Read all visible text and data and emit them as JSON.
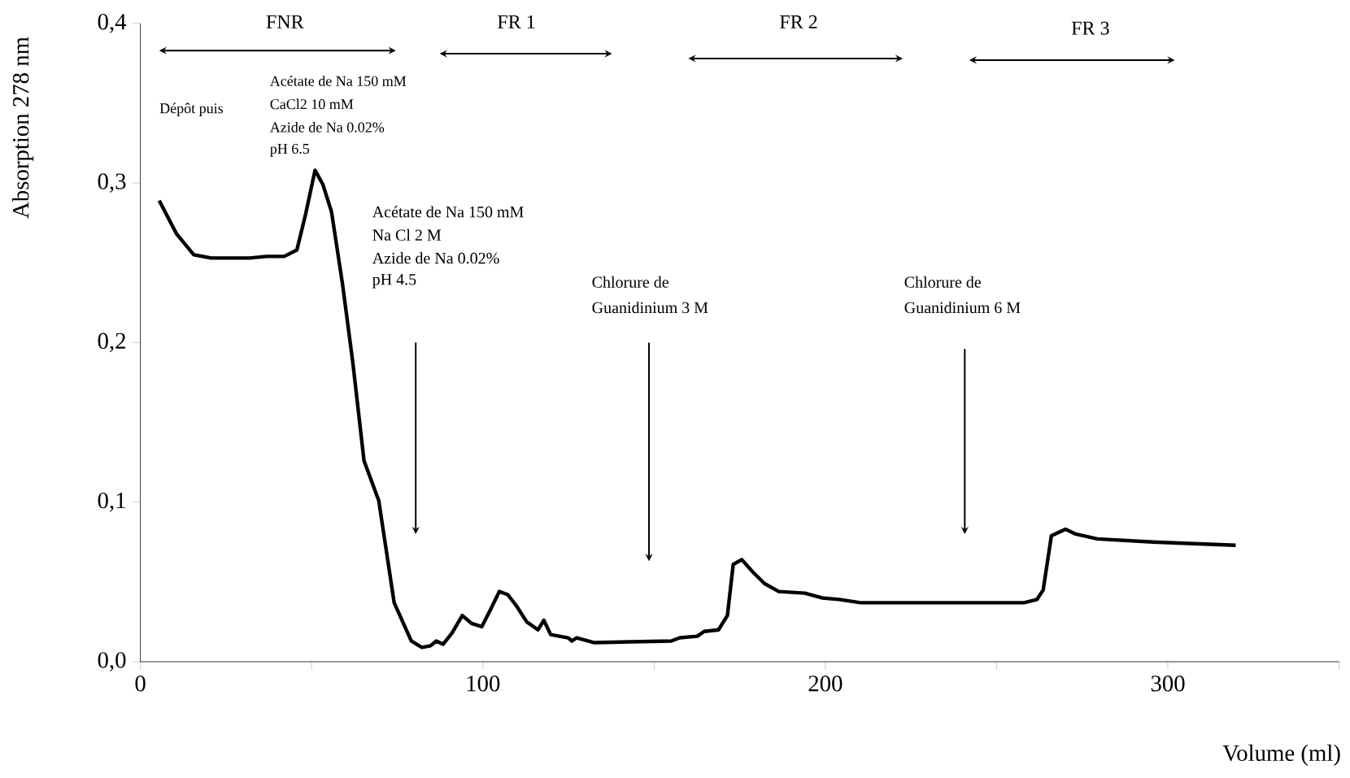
{
  "chart_data": {
    "type": "line",
    "xlabel": "Volume (ml)",
    "ylabel": "Absorption 278 nm",
    "xlim": [
      0,
      350
    ],
    "ylim": [
      0,
      0.4
    ],
    "xticks": [
      0,
      {
        "value": 50,
        "label": null
      },
      100,
      {
        "value": 150,
        "label": null
      },
      200,
      {
        "value": 250,
        "label": null
      },
      300,
      {
        "value": 350,
        "label": null
      }
    ],
    "yticks": [
      {
        "value": 0,
        "label": "0,0"
      },
      {
        "value": 0.1,
        "label": "0,1"
      },
      {
        "value": 0.2,
        "label": "0,2"
      },
      {
        "value": 0.3,
        "label": "0,3"
      },
      {
        "value": 0.4,
        "label": "0,4"
      }
    ],
    "x": [
      5.5,
      10.6,
      15.6,
      20.6,
      31.9,
      36.9,
      42,
      45.7,
      48.2,
      51,
      53.3,
      55.8,
      59,
      62,
      65.3,
      69.6,
      74.1,
      79.1,
      82.2,
      84.7,
      86.4,
      88.4,
      91,
      94,
      96.7,
      99.7,
      102.3,
      104.8,
      107.3,
      109.8,
      112.8,
      116.1,
      117.8,
      119.8,
      124.9,
      126,
      127.4,
      132.4,
      155,
      157.5,
      162.6,
      164.6,
      168.8,
      171.4,
      173.1,
      175.6,
      178.9,
      182.2,
      186.4,
      194,
      199,
      204,
      210.3,
      258,
      261.8,
      263.6,
      266,
      270.1,
      273.1,
      279.4,
      295.7,
      319.8
    ],
    "series": [
      {
        "color": "#000000",
        "values": [
          0.289,
          0.268,
          0.255,
          0.253,
          0.253,
          0.254,
          0.254,
          0.258,
          0.28,
          0.308,
          0.299,
          0.282,
          0.237,
          0.188,
          0.126,
          0.101,
          0.037,
          0.013,
          0.009,
          0.01,
          0.013,
          0.011,
          0.018,
          0.029,
          0.024,
          0.022,
          0.033,
          0.044,
          0.042,
          0.035,
          0.025,
          0.02,
          0.026,
          0.017,
          0.015,
          0.013,
          0.015,
          0.012,
          0.013,
          0.015,
          0.016,
          0.019,
          0.02,
          0.029,
          0.061,
          0.064,
          0.056,
          0.049,
          0.044,
          0.043,
          0.04,
          0.039,
          0.037,
          0.037,
          0.039,
          0.045,
          0.079,
          0.083,
          0.08,
          0.077,
          0.075,
          0.073
        ]
      }
    ],
    "annotations": [
      "FNR",
      "FR 1",
      "FR 2",
      "FR 3",
      "Dépôt  puis",
      "Acétate de Na 150 mM",
      "CaCl2 10 mM",
      "Azide de Na 0.02%",
      "pH  6.5",
      "Acétate de Na 150 mM",
      "Na Cl 2 M",
      "Azide de Na 0.02%",
      "pH 4.5",
      "Chlorure de",
      "Guanidinium 3 M",
      "Chlorure de",
      "Guanidinium 6 M"
    ]
  }
}
